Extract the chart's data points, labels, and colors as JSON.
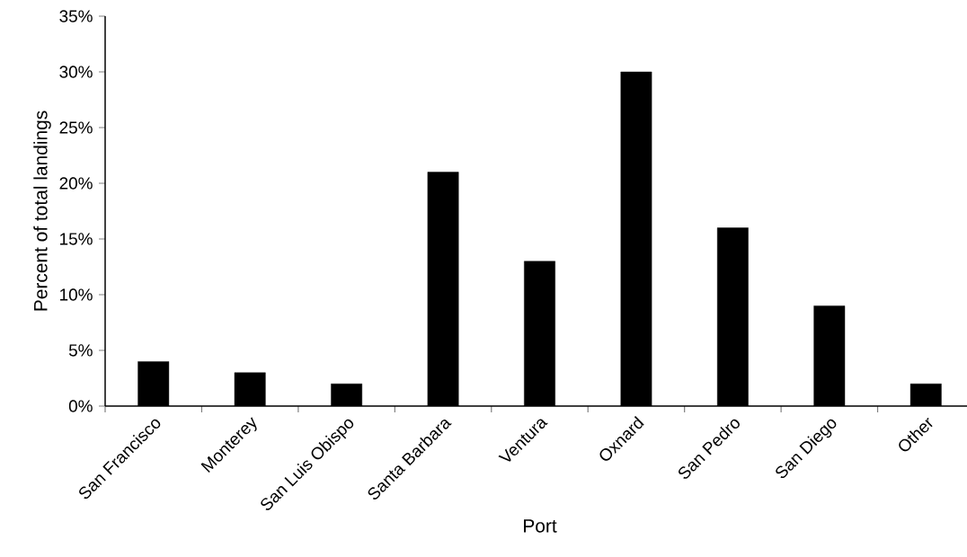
{
  "chart_data": {
    "type": "bar",
    "xlabel": "Port",
    "ylabel": "Percent of total landings",
    "categories": [
      "San Francisco",
      "Monterey",
      "San Luis Obispo",
      "Santa Barbara",
      "Ventura",
      "Oxnard",
      "San Pedro",
      "San Diego",
      "Other"
    ],
    "values": [
      4,
      3,
      2,
      21,
      13,
      30,
      16,
      9,
      2
    ],
    "color": "#000000",
    "ylim": [
      0,
      35
    ],
    "yticks": [
      {
        "value": 0,
        "label": "0%"
      },
      {
        "value": 5,
        "label": "5%"
      },
      {
        "value": 10,
        "label": "10%"
      },
      {
        "value": 15,
        "label": "15%"
      },
      {
        "value": 20,
        "label": "20%"
      },
      {
        "value": 25,
        "label": "25%"
      },
      {
        "value": 30,
        "label": "30%"
      },
      {
        "value": 35,
        "label": "35%"
      }
    ],
    "grid": false
  }
}
